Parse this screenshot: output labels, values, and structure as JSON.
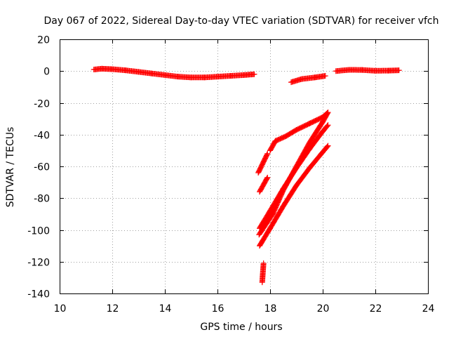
{
  "chart_data": {
    "type": "scatter",
    "title": "Day 067 of 2022, Sidereal Day-to-day VTEC variation (SDTVAR) for receiver vfch",
    "xlabel": "GPS time / hours",
    "ylabel": "SDTVAR / TECUs",
    "xlim": [
      10,
      24
    ],
    "ylim": [
      -140,
      20
    ],
    "xticks": [
      10,
      12,
      14,
      16,
      18,
      20,
      22,
      24
    ],
    "yticks": [
      20,
      0,
      -20,
      -40,
      -60,
      -80,
      -100,
      -120,
      -140
    ],
    "grid": true,
    "marker": "plus",
    "colors": {
      "series": "#ff0000",
      "grid": "#a0a0a0",
      "frame": "#000000"
    },
    "series": [
      {
        "segments": [
          {
            "x": [
              11.3,
              11.6,
              12.0,
              12.5,
              13.0,
              13.5,
              14.0,
              14.5,
              15.0,
              15.5,
              16.0,
              16.5,
              17.0,
              17.4
            ],
            "y": [
              1.0,
              1.5,
              1.2,
              0.5,
              -0.5,
              -1.5,
              -2.5,
              -3.5,
              -4.0,
              -4.0,
              -3.5,
              -3.0,
              -2.5,
              -2.0
            ]
          },
          {
            "x": [
              17.55,
              17.9
            ],
            "y": [
              -64,
              -52
            ]
          },
          {
            "x": [
              17.6,
              17.9
            ],
            "y": [
              -76,
              -67
            ]
          },
          {
            "x": [
              17.58,
              18.1,
              18.5,
              19.0,
              19.5,
              20.0,
              20.2
            ],
            "y": [
              -103,
              -90,
              -75,
              -60,
              -45,
              -32,
              -26
            ]
          },
          {
            "x": [
              17.6,
              18.0,
              18.5,
              19.0,
              19.5,
              20.0,
              20.2
            ],
            "y": [
              -99,
              -88,
              -74,
              -61,
              -49,
              -38,
              -34
            ]
          },
          {
            "x": [
              17.6,
              18.0,
              18.5,
              19.0,
              19.5,
              20.0,
              20.2
            ],
            "y": [
              -110,
              -99,
              -85,
              -72,
              -61,
              -51,
              -47
            ]
          },
          {
            "x": [
              18.0,
              18.2,
              18.6,
              19.0,
              19.5,
              20.0,
              20.2
            ],
            "y": [
              -50,
              -44,
              -41,
              -37,
              -33,
              -29,
              -26
            ]
          },
          {
            "x": [
              17.7,
              17.75
            ],
            "y": [
              -133,
              -121
            ]
          },
          {
            "x": [
              18.8,
              19.2,
              19.7,
              20.1
            ],
            "y": [
              -7,
              -5,
              -4,
              -3
            ]
          },
          {
            "x": [
              20.5,
              21.0,
              21.5,
              22.0,
              22.5,
              22.9
            ],
            "y": [
              0,
              0.8,
              0.7,
              0.2,
              0.3,
              0.5
            ]
          }
        ]
      }
    ]
  }
}
